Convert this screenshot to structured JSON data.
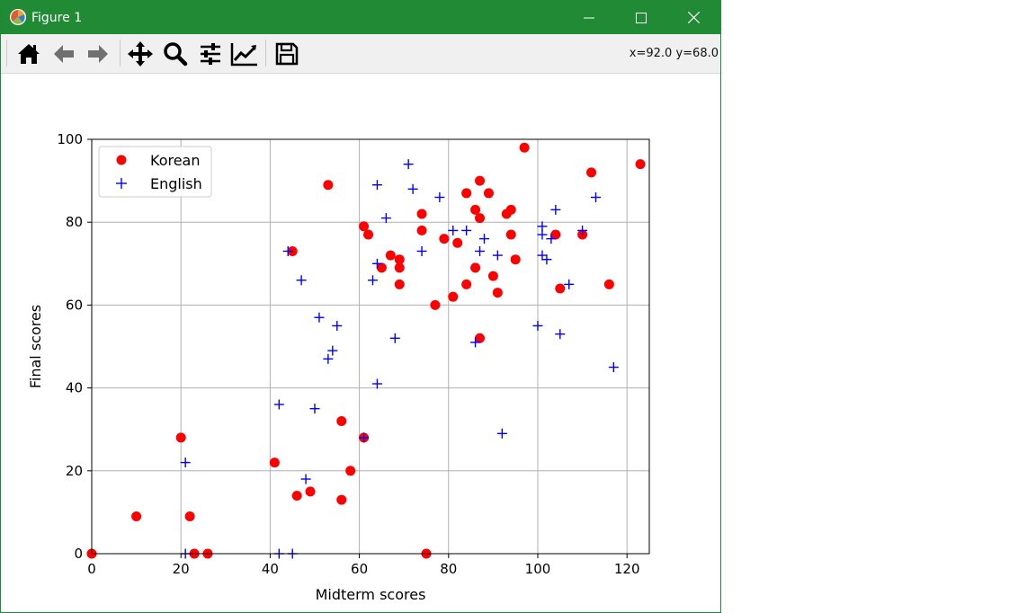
{
  "window": {
    "title": "Figure 1"
  },
  "toolbar": {
    "tools": [
      "home-icon",
      "back-arrow-icon",
      "forward-arrow-icon",
      "pan-icon",
      "zoom-icon",
      "subplots-icon",
      "edit-axis-icon",
      "save-icon"
    ],
    "coords": "x=92.0 y=68.0"
  },
  "colors": {
    "titlebar": "#208a34",
    "korean": "#ff0000",
    "english": "#0000ff",
    "grid": "#b0b0b0"
  },
  "chart_data": {
    "type": "scatter",
    "title": "",
    "xlabel": "Midterm scores",
    "ylabel": "Final scores",
    "xlim": [
      0,
      125
    ],
    "ylim": [
      0,
      100
    ],
    "xticks": [
      0,
      20,
      40,
      60,
      80,
      100,
      120
    ],
    "yticks": [
      0,
      20,
      40,
      60,
      80,
      100
    ],
    "grid": true,
    "legend": "upper-left",
    "series": [
      {
        "name": "Korean",
        "marker": "circle",
        "color": "#ff0000",
        "points": [
          [
            0,
            0
          ],
          [
            10,
            9
          ],
          [
            20,
            28
          ],
          [
            22,
            9
          ],
          [
            23,
            0
          ],
          [
            26,
            0
          ],
          [
            41,
            22
          ],
          [
            45,
            73
          ],
          [
            46,
            14
          ],
          [
            49,
            15
          ],
          [
            53,
            89
          ],
          [
            56,
            32
          ],
          [
            56,
            13
          ],
          [
            58,
            20
          ],
          [
            61,
            79
          ],
          [
            61,
            28
          ],
          [
            62,
            77
          ],
          [
            65,
            69
          ],
          [
            67,
            72
          ],
          [
            69,
            71
          ],
          [
            69,
            69
          ],
          [
            69,
            65
          ],
          [
            74,
            82
          ],
          [
            74,
            78
          ],
          [
            75,
            0
          ],
          [
            77,
            60
          ],
          [
            79,
            76
          ],
          [
            81,
            62
          ],
          [
            82,
            75
          ],
          [
            84,
            87
          ],
          [
            84,
            65
          ],
          [
            86,
            83
          ],
          [
            86,
            69
          ],
          [
            87,
            90
          ],
          [
            87,
            81
          ],
          [
            87,
            52
          ],
          [
            89,
            87
          ],
          [
            90,
            67
          ],
          [
            91,
            63
          ],
          [
            93,
            82
          ],
          [
            94,
            83
          ],
          [
            94,
            77
          ],
          [
            95,
            71
          ],
          [
            97,
            98
          ],
          [
            104,
            77
          ],
          [
            105,
            64
          ],
          [
            110,
            77
          ],
          [
            112,
            92
          ],
          [
            116,
            65
          ],
          [
            123,
            94
          ]
        ]
      },
      {
        "name": "English",
        "marker": "plus",
        "color": "#0000ff",
        "points": [
          [
            21,
            22
          ],
          [
            21,
            0
          ],
          [
            42,
            36
          ],
          [
            42,
            0
          ],
          [
            44,
            73
          ],
          [
            45,
            0
          ],
          [
            47,
            66
          ],
          [
            48,
            18
          ],
          [
            50,
            35
          ],
          [
            51,
            57
          ],
          [
            53,
            47
          ],
          [
            54,
            49
          ],
          [
            55,
            55
          ],
          [
            61,
            28
          ],
          [
            63,
            66
          ],
          [
            64,
            89
          ],
          [
            64,
            70
          ],
          [
            64,
            41
          ],
          [
            66,
            81
          ],
          [
            68,
            52
          ],
          [
            71,
            94
          ],
          [
            72,
            88
          ],
          [
            74,
            73
          ],
          [
            78,
            86
          ],
          [
            81,
            78
          ],
          [
            84,
            78
          ],
          [
            86,
            51
          ],
          [
            87,
            73
          ],
          [
            88,
            76
          ],
          [
            91,
            72
          ],
          [
            92,
            29
          ],
          [
            100,
            55
          ],
          [
            101,
            79
          ],
          [
            101,
            77
          ],
          [
            101,
            72
          ],
          [
            102,
            71
          ],
          [
            103,
            76
          ],
          [
            104,
            83
          ],
          [
            105,
            53
          ],
          [
            107,
            65
          ],
          [
            110,
            78
          ],
          [
            113,
            86
          ],
          [
            117,
            45
          ]
        ]
      }
    ]
  }
}
